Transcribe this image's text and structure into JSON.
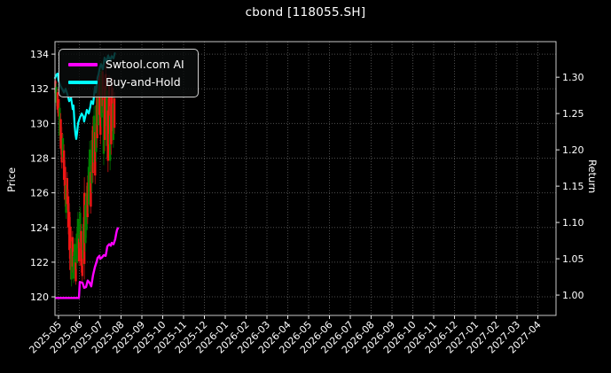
{
  "title": "cbond [118055.SH]",
  "chart_data": {
    "type": "candlestick",
    "title": "cbond [118055.SH]",
    "background": "#000000",
    "text_color": "#ffffff",
    "grid": {
      "show": true,
      "color": "#4d4d4d",
      "style": "dotted"
    },
    "left_axis": {
      "label": "Price",
      "ticks": [
        120,
        122,
        124,
        126,
        128,
        130,
        132,
        134
      ],
      "range": [
        118.93,
        134.72
      ]
    },
    "right_axis": {
      "label": "Return",
      "ticks": [
        "1.00",
        "1.05",
        "1.10",
        "1.15",
        "1.20",
        "1.25",
        "1.30"
      ],
      "range": [
        0.972,
        1.349
      ]
    },
    "x_axis": {
      "range": [
        -0.17,
        23.87
      ],
      "label_rotation": -45,
      "tick_labels": [
        "2025-05",
        "2025-06",
        "2025-07",
        "2025-08",
        "2025-09",
        "2025-10",
        "2025-11",
        "2025-12",
        "2026-01",
        "2026-02",
        "2026-03",
        "2026-04",
        "2026-05",
        "2026-06",
        "2026-07",
        "2026-08",
        "2026-09",
        "2026-10",
        "2026-11",
        "2026-12",
        "2027-01",
        "2027-02",
        "2027-03",
        "2027-04"
      ]
    },
    "legend": {
      "position": "upper-left",
      "items": [
        {
          "label": "Swtool.com AI",
          "color": "#ff00ff"
        },
        {
          "label": "Buy-and-Hold",
          "color": "#00ffff"
        }
      ]
    },
    "candles": {
      "up_color": "#f01515",
      "up_wick_color": "#a81010",
      "down_color": "#008000",
      "down_wick_color": "#005c00",
      "ohlc": [
        [
          -0.15,
          131.75,
          132.6,
          131.6,
          132.45
        ],
        [
          -0.099,
          132.1,
          132.3,
          131.0,
          131.2
        ],
        [
          -0.047,
          130.8,
          132.0,
          130.6,
          131.8
        ],
        [
          0.005,
          130.4,
          131.6,
          130.2,
          131.4
        ],
        [
          0.056,
          130.9,
          131.2,
          129.0,
          129.3
        ],
        [
          0.108,
          128.55,
          130.6,
          128.2,
          130.25
        ],
        [
          0.159,
          127.75,
          129.8,
          127.4,
          129.45
        ],
        [
          0.211,
          129.15,
          129.4,
          127.8,
          128.05
        ],
        [
          0.262,
          126.75,
          128.8,
          126.4,
          128.45
        ],
        [
          0.314,
          125.6,
          127.9,
          125.2,
          127.5
        ],
        [
          0.365,
          126.45,
          126.8,
          124.5,
          124.85
        ],
        [
          0.417,
          125.35,
          127.2,
          125.0,
          126.85
        ],
        [
          0.468,
          124.0,
          126.2,
          123.6,
          125.8
        ],
        [
          0.52,
          122.7,
          125.4,
          122.2,
          124.9
        ],
        [
          0.571,
          121.55,
          124.6,
          121.0,
          124.05
        ],
        [
          0.623,
          122.8,
          123.2,
          120.6,
          121.0
        ],
        [
          0.674,
          121.75,
          123.8,
          121.4,
          123.45
        ],
        [
          0.726,
          122.35,
          122.6,
          120.8,
          121.05
        ],
        [
          0.777,
          123.05,
          123.4,
          121.2,
          121.55
        ],
        [
          0.829,
          120.9,
          122.2,
          120.7,
          122.0
        ],
        [
          0.88,
          123.65,
          124.0,
          121.6,
          121.95
        ],
        [
          0.932,
          124.5,
          124.9,
          122.4,
          122.8
        ],
        [
          0.983,
          122.05,
          123.6,
          121.8,
          123.35
        ],
        [
          1.035,
          124.85,
          125.2,
          122.8,
          123.15
        ],
        [
          1.086,
          121.8,
          124.2,
          121.4,
          123.8
        ],
        [
          1.138,
          121.2,
          123.0,
          120.9,
          122.7
        ],
        [
          1.189,
          124.2,
          124.6,
          121.8,
          122.2
        ],
        [
          1.241,
          121.9,
          126.9,
          121.0,
          126.0
        ],
        [
          1.292,
          125.3,
          125.8,
          122.6,
          123.1
        ],
        [
          1.344,
          126.0,
          126.4,
          123.4,
          123.85
        ],
        [
          1.395,
          124.6,
          127.0,
          124.2,
          126.6
        ],
        [
          1.447,
          127.5,
          128.0,
          124.8,
          125.3
        ],
        [
          1.498,
          128.5,
          129.0,
          125.6,
          126.1
        ],
        [
          1.55,
          125.2,
          127.6,
          124.8,
          127.2
        ],
        [
          1.601,
          129.05,
          129.6,
          126.0,
          126.55
        ],
        [
          1.653,
          127.15,
          130.4,
          126.6,
          129.85
        ],
        [
          1.704,
          130.45,
          131.0,
          127.2,
          127.75
        ],
        [
          1.756,
          127.0,
          130.0,
          126.5,
          129.5
        ],
        [
          1.807,
          131.05,
          131.6,
          127.8,
          128.35
        ],
        [
          1.859,
          129.15,
          132.2,
          128.6,
          131.65
        ],
        [
          1.91,
          132.3,
          132.8,
          129.4,
          129.9
        ],
        [
          1.962,
          130.5,
          133.3,
          130.0,
          132.8
        ],
        [
          2.013,
          129.35,
          132.4,
          128.8,
          131.85
        ],
        [
          2.065,
          133.05,
          133.6,
          129.8,
          130.35
        ],
        [
          2.116,
          131.0,
          133.4,
          130.6,
          133.0
        ],
        [
          2.168,
          131.35,
          132.0,
          127.6,
          128.25
        ],
        [
          2.219,
          129.05,
          132.8,
          128.4,
          132.15
        ],
        [
          2.271,
          129.85,
          133.5,
          129.2,
          132.85
        ],
        [
          2.322,
          131.9,
          132.6,
          128.0,
          128.7
        ],
        [
          2.374,
          127.85,
          131.4,
          127.2,
          130.75
        ],
        [
          2.425,
          129.4,
          132.8,
          128.8,
          132.2
        ],
        [
          2.477,
          130.45,
          131.0,
          127.3,
          127.85
        ],
        [
          2.528,
          128.8,
          132.2,
          128.2,
          131.6
        ],
        [
          2.58,
          129.55,
          132.6,
          129.0,
          132.05
        ],
        [
          2.631,
          131.15,
          131.6,
          128.6,
          129.05
        ],
        [
          2.683,
          129.75,
          131.8,
          129.4,
          131.45
        ]
      ]
    },
    "series": [
      {
        "name": "Buy-and-Hold",
        "axis": "right",
        "color": "#00ffff",
        "width": 2.2,
        "points": [
          [
            -0.17,
            1.299
          ],
          [
            -0.09,
            1.304
          ],
          [
            -0.04,
            1.305
          ],
          [
            0.0,
            1.296
          ],
          [
            0.09,
            1.288
          ],
          [
            0.17,
            1.284
          ],
          [
            0.26,
            1.279
          ],
          [
            0.34,
            1.284
          ],
          [
            0.43,
            1.276
          ],
          [
            0.51,
            1.267
          ],
          [
            0.6,
            1.272
          ],
          [
            0.68,
            1.256
          ],
          [
            0.72,
            1.261
          ],
          [
            0.77,
            1.235
          ],
          [
            0.81,
            1.222
          ],
          [
            0.85,
            1.215
          ],
          [
            0.89,
            1.223
          ],
          [
            0.94,
            1.237
          ],
          [
            1.02,
            1.244
          ],
          [
            1.11,
            1.25
          ],
          [
            1.19,
            1.246
          ],
          [
            1.23,
            1.239
          ],
          [
            1.32,
            1.25
          ],
          [
            1.36,
            1.255
          ],
          [
            1.45,
            1.25
          ],
          [
            1.53,
            1.26
          ],
          [
            1.57,
            1.267
          ],
          [
            1.66,
            1.263
          ],
          [
            1.7,
            1.274
          ],
          [
            1.75,
            1.287
          ],
          [
            1.79,
            1.279
          ],
          [
            1.83,
            1.289
          ],
          [
            1.87,
            1.299
          ],
          [
            1.92,
            1.304
          ],
          [
            1.96,
            1.31
          ],
          [
            2.0,
            1.315
          ],
          [
            2.04,
            1.318
          ],
          [
            2.13,
            1.311
          ],
          [
            2.21,
            1.327
          ],
          [
            2.3,
            1.321
          ],
          [
            2.38,
            1.33
          ],
          [
            2.47,
            1.323
          ],
          [
            2.55,
            1.329
          ],
          [
            2.64,
            1.326
          ],
          [
            2.7,
            1.333
          ]
        ]
      },
      {
        "name": "Swtool.com AI",
        "axis": "right",
        "color": "#ff00ff",
        "width": 2.4,
        "points": [
          [
            -0.13,
            0.996
          ],
          [
            0.98,
            0.996
          ],
          [
            1.02,
            1.018
          ],
          [
            1.15,
            1.017
          ],
          [
            1.23,
            1.01
          ],
          [
            1.32,
            1.011
          ],
          [
            1.4,
            1.02
          ],
          [
            1.49,
            1.017
          ],
          [
            1.57,
            1.012
          ],
          [
            1.66,
            1.028
          ],
          [
            1.75,
            1.039
          ],
          [
            1.83,
            1.046
          ],
          [
            1.87,
            1.051
          ],
          [
            1.96,
            1.054
          ],
          [
            2.0,
            1.05
          ],
          [
            2.09,
            1.052
          ],
          [
            2.17,
            1.055
          ],
          [
            2.26,
            1.054
          ],
          [
            2.3,
            1.06
          ],
          [
            2.34,
            1.067
          ],
          [
            2.43,
            1.07
          ],
          [
            2.51,
            1.068
          ],
          [
            2.55,
            1.072
          ],
          [
            2.64,
            1.07
          ],
          [
            2.72,
            1.077
          ],
          [
            2.77,
            1.085
          ],
          [
            2.81,
            1.09
          ],
          [
            2.85,
            1.092
          ]
        ]
      }
    ]
  }
}
